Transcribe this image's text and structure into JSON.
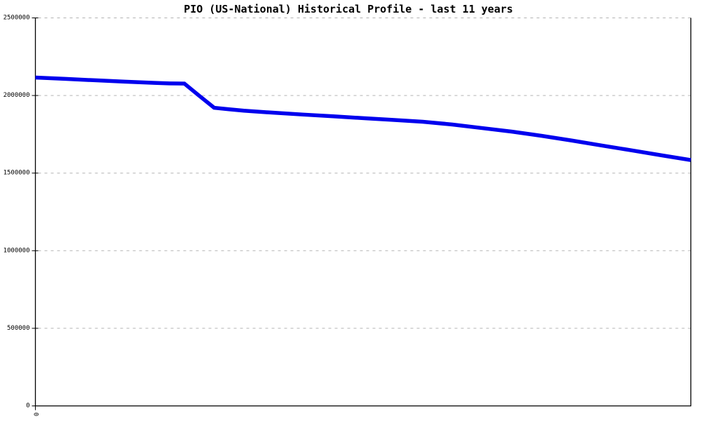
{
  "chart_data": {
    "type": "line",
    "title": "PIO (US-National) Historical Profile - last 11 years",
    "xlabel": "",
    "ylabel": "",
    "x_range": [
      0,
      11
    ],
    "y_range": [
      0,
      2500000
    ],
    "yticks": [
      0,
      500000,
      1000000,
      1500000,
      2000000,
      2500000
    ],
    "ytick_labels": [
      "0",
      "500000",
      "1000000",
      "1500000",
      "2000000",
      "2500000"
    ],
    "xticks": [
      0
    ],
    "xtick_labels": [
      "0"
    ],
    "xtick_rotated": true,
    "grid": "horizontal-dotted",
    "legend": "none",
    "series": [
      {
        "name": "PIO (US-National)",
        "color": "#0000ee",
        "points": [
          [
            0.0,
            2116000
          ],
          [
            0.5,
            2107000
          ],
          [
            1.0,
            2098000
          ],
          [
            1.5,
            2089000
          ],
          [
            2.0,
            2081000
          ],
          [
            2.25,
            2078000
          ],
          [
            2.5,
            2077000
          ],
          [
            2.75,
            1998000
          ],
          [
            3.0,
            1921000
          ],
          [
            3.25,
            1911000
          ],
          [
            3.5,
            1902000
          ],
          [
            4.0,
            1889000
          ],
          [
            4.5,
            1877000
          ],
          [
            5.0,
            1866000
          ],
          [
            5.5,
            1854000
          ],
          [
            6.0,
            1843000
          ],
          [
            6.5,
            1831000
          ],
          [
            7.0,
            1813000
          ],
          [
            7.5,
            1790000
          ],
          [
            8.0,
            1767000
          ],
          [
            8.5,
            1740000
          ],
          [
            9.0,
            1710000
          ],
          [
            9.5,
            1678000
          ],
          [
            10.0,
            1647000
          ],
          [
            10.5,
            1615000
          ],
          [
            11.0,
            1584000
          ]
        ]
      }
    ]
  },
  "colors": {
    "line": "#0000ee",
    "grid": "#b3b3b3",
    "axis": "#000000",
    "background": "#ffffff"
  }
}
